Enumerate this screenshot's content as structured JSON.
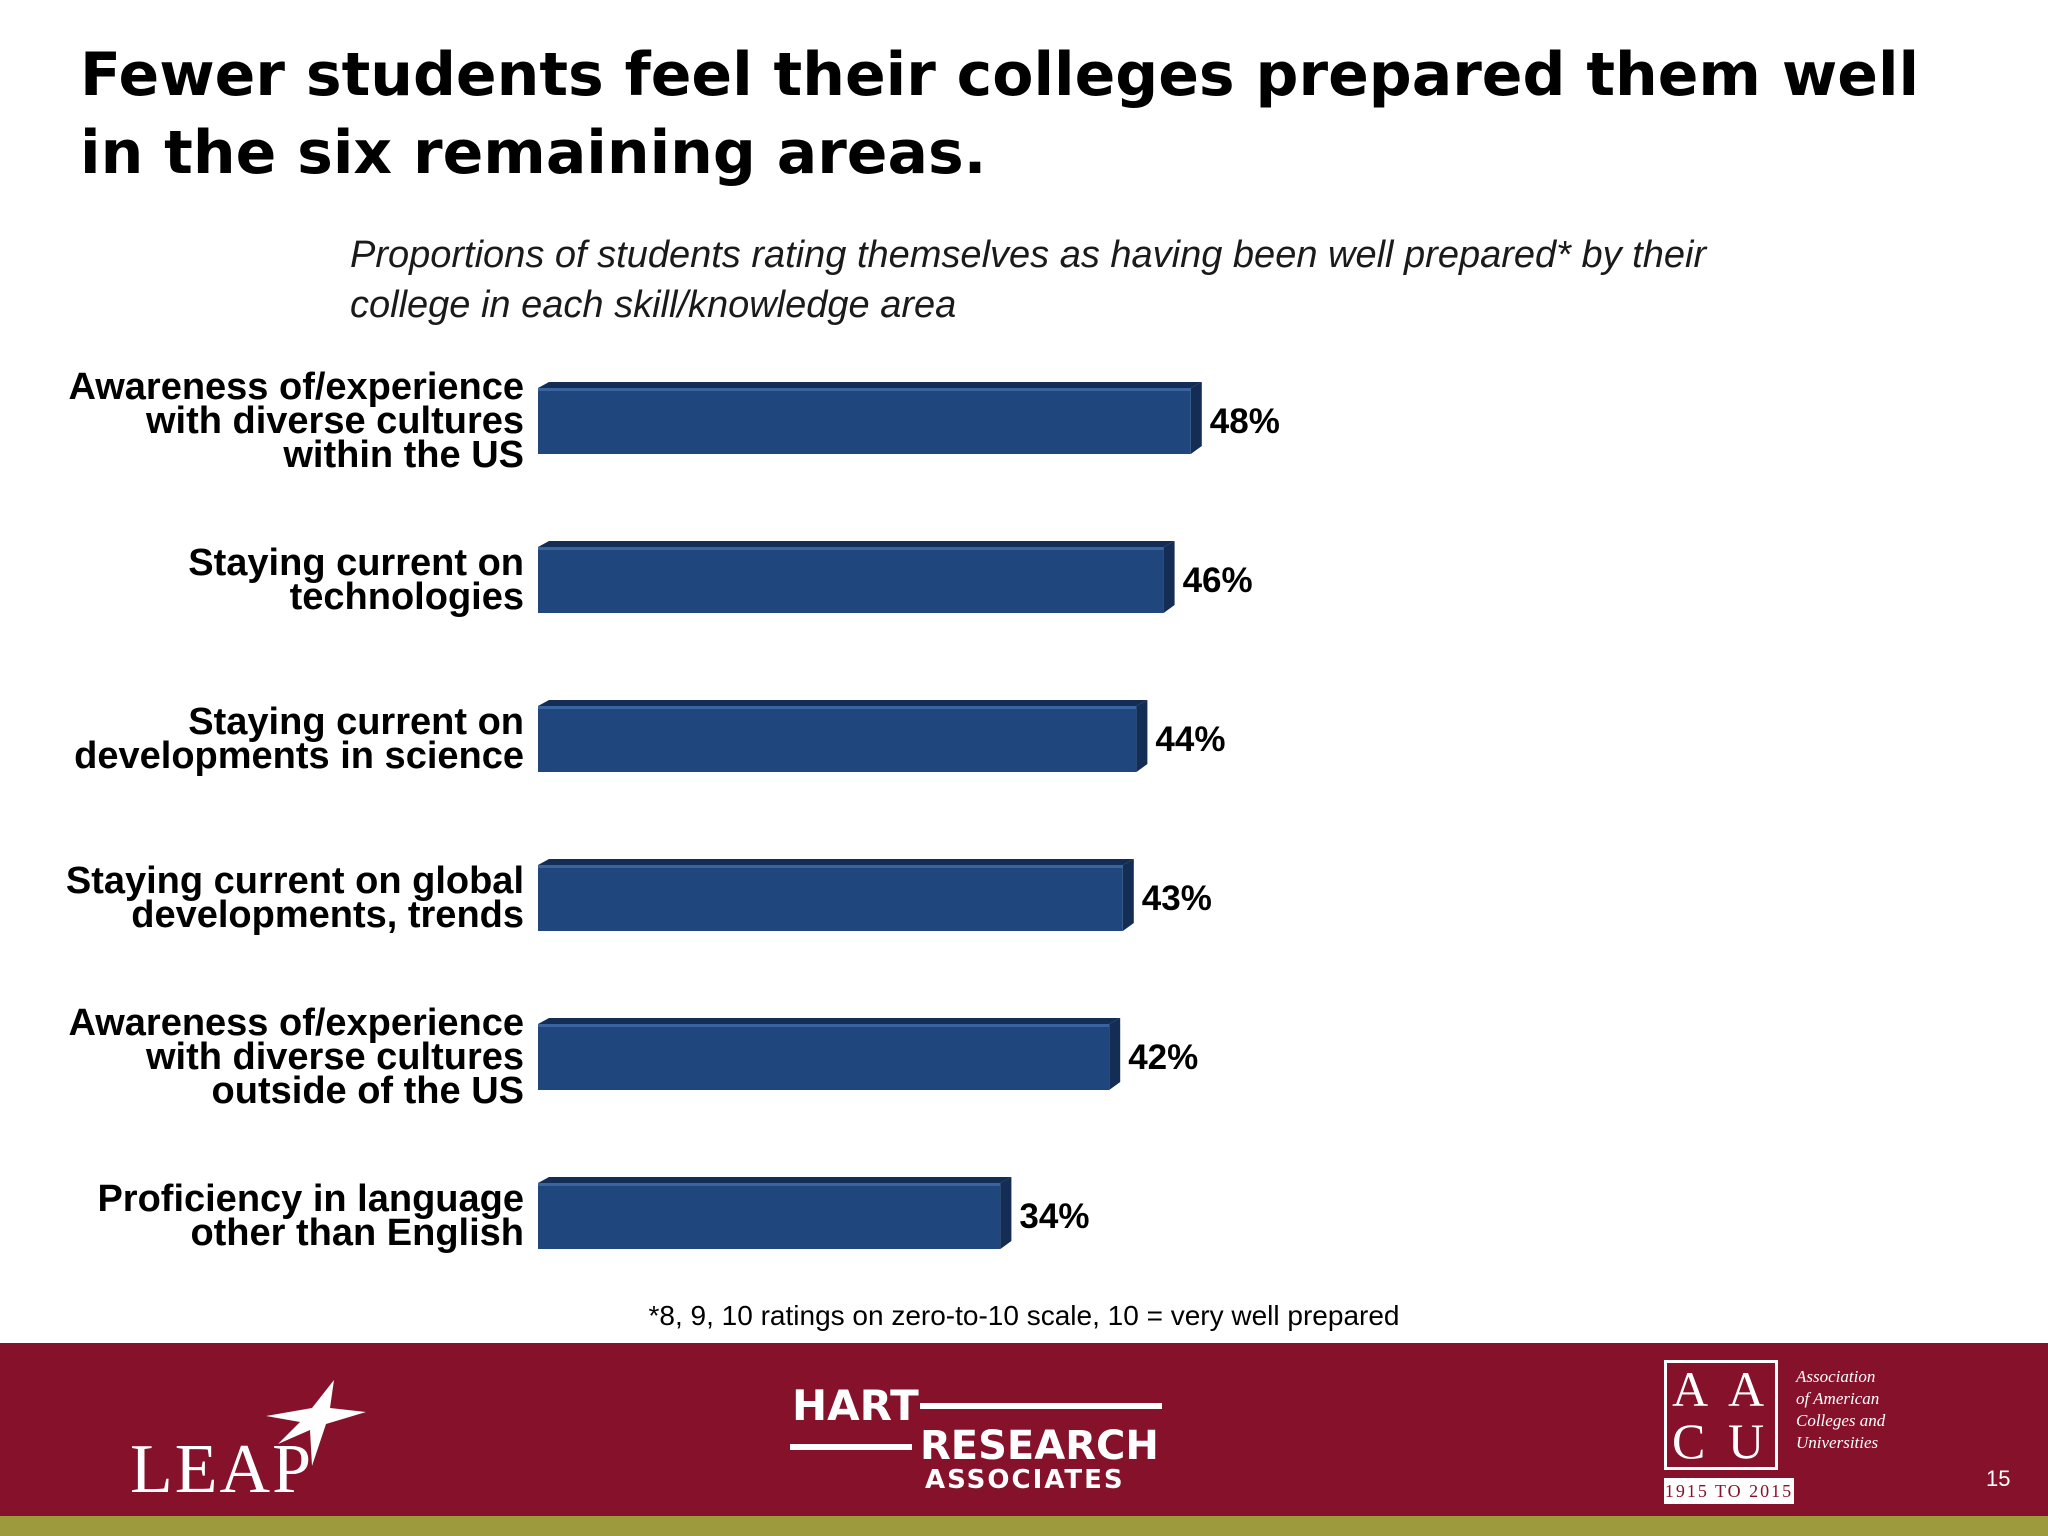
{
  "title": "Fewer students feel their colleges prepared them well in the six remaining areas.",
  "subtitle": "Proportions of students rating themselves as having been well prepared* by their college in each skill/knowledge area",
  "footnote": "*8, 9, 10 ratings on zero-to-10 scale, 10 = very well prepared",
  "page_number": "15",
  "colors": {
    "bar": "#1f467d",
    "bar_dark": "#142d54",
    "footer": "#85112b",
    "footer_strip": "#9c9a3c"
  },
  "chart_data": {
    "type": "bar",
    "orientation": "horizontal",
    "categories": [
      [
        "Awareness of/experience",
        "with diverse cultures",
        "within the US"
      ],
      [
        "Staying current on",
        "technologies"
      ],
      [
        "Staying current on",
        "developments in science"
      ],
      [
        "Staying current on global",
        "developments, trends"
      ],
      [
        "Awareness of/experience",
        "with diverse cultures",
        "outside of the US"
      ],
      [
        "Proficiency in language",
        "other than English"
      ]
    ],
    "values": [
      48,
      46,
      44,
      43,
      42,
      34
    ],
    "value_labels": [
      "48%",
      "46%",
      "44%",
      "43%",
      "42%",
      "34%"
    ],
    "xlim": [
      0,
      100
    ],
    "grid": false,
    "legend": "none"
  },
  "footer": {
    "leap": {
      "text": "LEAP"
    },
    "hart": {
      "line1": "HART",
      "line2": "RESEARCH",
      "line3": "ASSOCIATES"
    },
    "aacu": {
      "letters": [
        "A",
        "A",
        "C",
        "U"
      ],
      "name_lines": [
        "Association",
        "of American",
        "Colleges and",
        "Universities"
      ],
      "years": "1915 TO 2015"
    }
  }
}
